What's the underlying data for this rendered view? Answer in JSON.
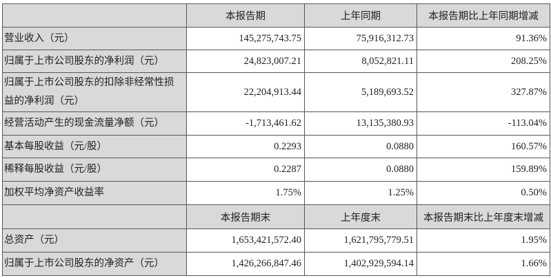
{
  "header1": [
    "",
    "本报告期",
    "上年同期",
    "本报告期比上年同期增减"
  ],
  "rows1": [
    {
      "label": "营业收入（元）",
      "current": "145,275,743.75",
      "prior": "75,916,312.73",
      "change": "91.36%"
    },
    {
      "label": "归属于上市公司股东的净利润（元）",
      "current": "24,823,007.21",
      "prior": "8,052,821.11",
      "change": "208.25%"
    },
    {
      "label": "归属于上市公司股东的扣除非经常性损益的净利润（元）",
      "current": "22,204,913.44",
      "prior": "5,189,693.52",
      "change": "327.87%"
    },
    {
      "label": "经营活动产生的现金流量净额（元）",
      "current": "-1,713,461.62",
      "prior": "13,135,380.93",
      "change": "-113.04%"
    },
    {
      "label": "基本每股收益（元/股）",
      "current": "0.2293",
      "prior": "0.0880",
      "change": "160.57%"
    },
    {
      "label": "稀释每股收益（元/股）",
      "current": "0.2287",
      "prior": "0.0880",
      "change": "159.89%"
    },
    {
      "label": "加权平均净资产收益率",
      "current": "1.75%",
      "prior": "1.25%",
      "change": "0.50%"
    }
  ],
  "header2": [
    "",
    "本报告期末",
    "上年度末",
    "本报告期末比上年度末增减"
  ],
  "rows2": [
    {
      "label": "总资产（元）",
      "current": "1,653,421,572.40",
      "prior": "1,621,795,779.51",
      "change": "1.95%"
    },
    {
      "label": "归属于上市公司股东的净资产（元）",
      "current": "1,426,266,847.46",
      "prior": "1,402,929,594.14",
      "change": "1.66%"
    }
  ]
}
